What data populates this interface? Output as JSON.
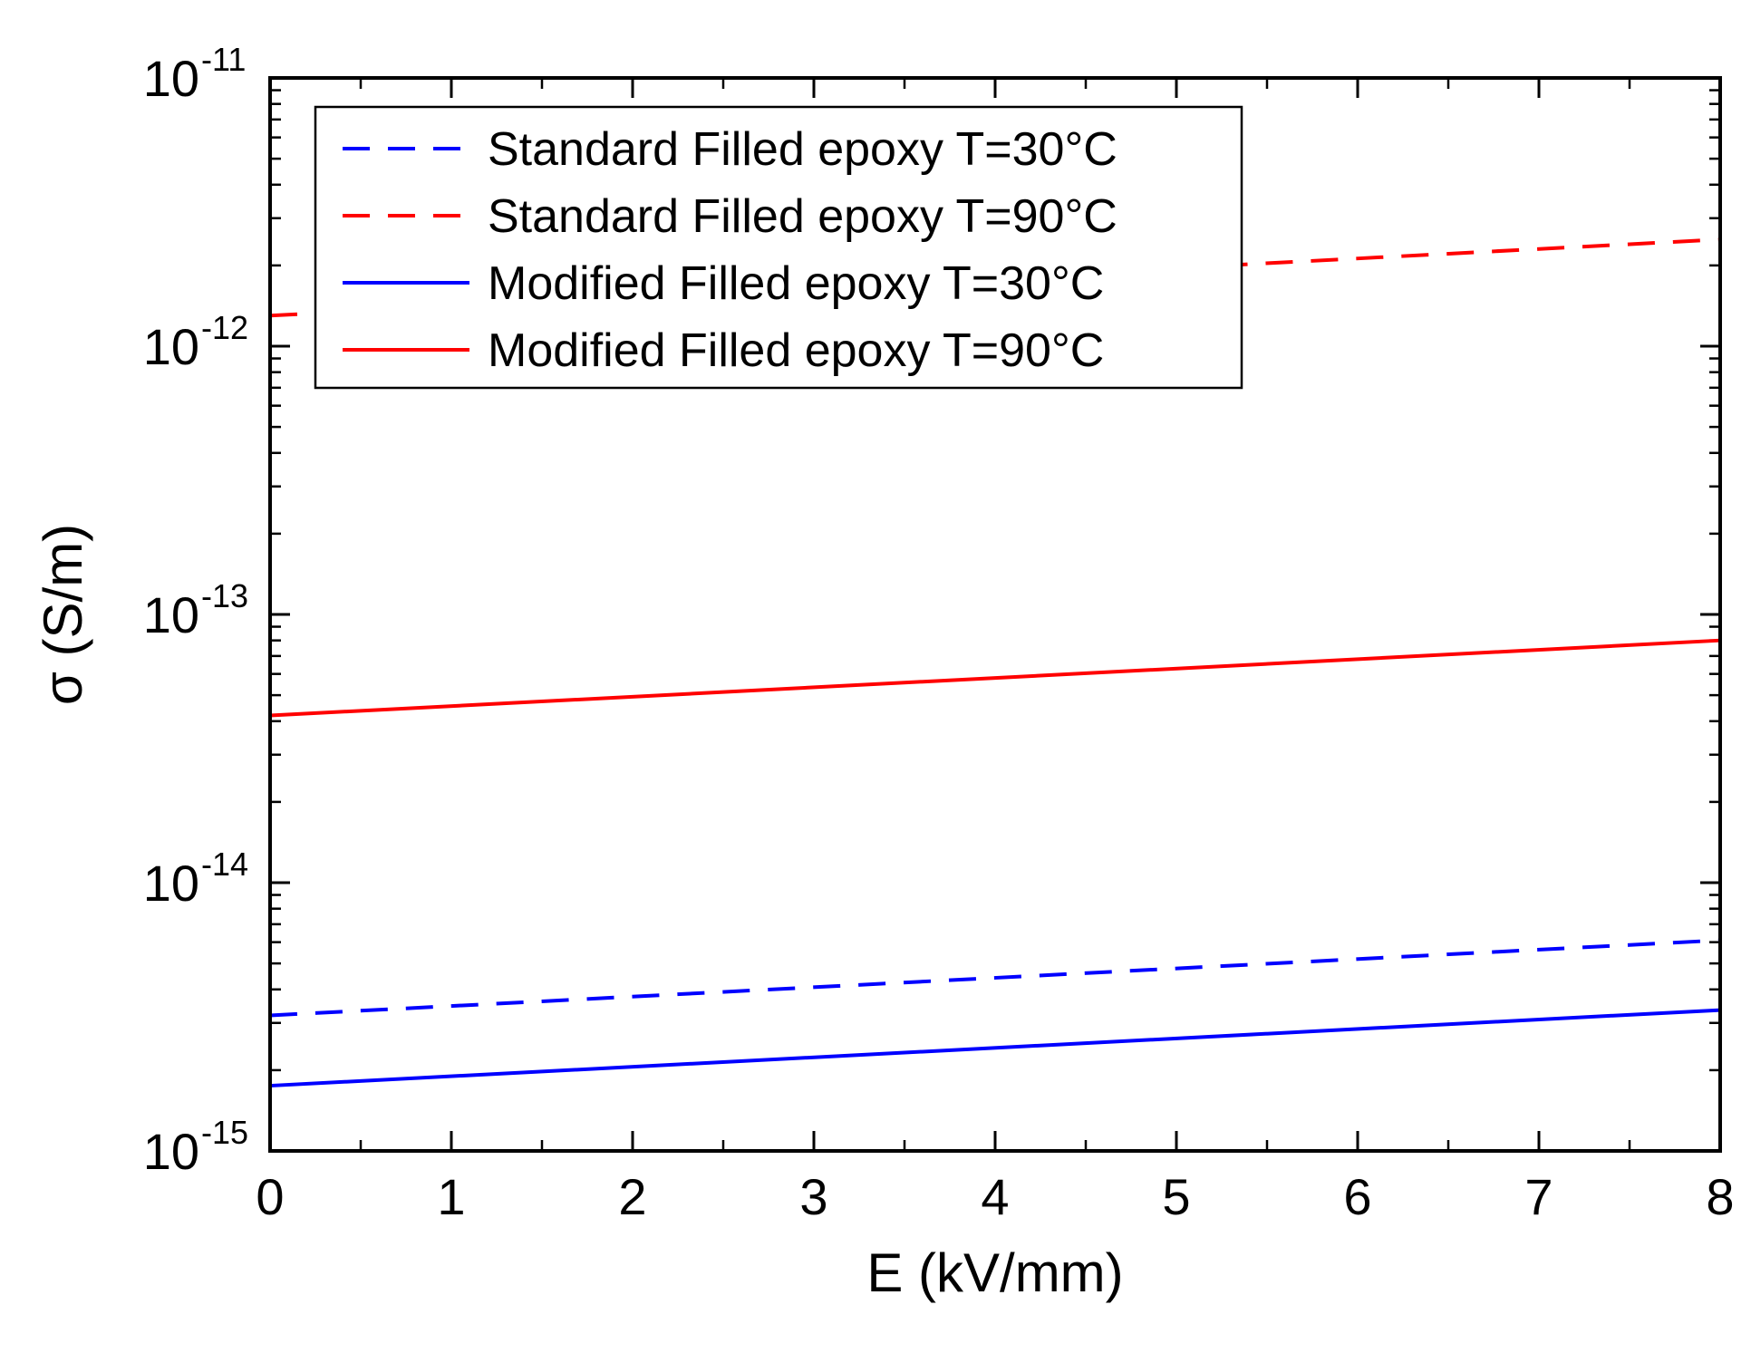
{
  "chart_data": {
    "type": "line",
    "title": "",
    "xlabel": "E (kV/mm)",
    "ylabel": "σ (S/m)",
    "xlim": [
      0,
      8
    ],
    "ylim_log10": [
      -15,
      -11
    ],
    "y_scale": "log",
    "x_ticks": [
      "0",
      "1",
      "2",
      "3",
      "4",
      "5",
      "6",
      "7",
      "8"
    ],
    "y_ticks": [
      {
        "base": "10",
        "exp": "-11"
      },
      {
        "base": "10",
        "exp": "-12"
      },
      {
        "base": "10",
        "exp": "-13"
      },
      {
        "base": "10",
        "exp": "-14"
      },
      {
        "base": "10",
        "exp": "-15"
      }
    ],
    "grid": false,
    "legend_position": "top-left",
    "series": [
      {
        "name": "Standard Filled epoxy T=30°C",
        "color": "#0000ff",
        "style": "dashed",
        "x": [
          0,
          8
        ],
        "y": [
          3.2e-15,
          6.1e-15
        ]
      },
      {
        "name": "Standard Filled epoxy T=90°C",
        "color": "#ff0000",
        "style": "dashed",
        "x": [
          0,
          8
        ],
        "y": [
          1.3e-12,
          2.5e-12
        ]
      },
      {
        "name": "Modified Filled epoxy T=30°C",
        "color": "#0000ff",
        "style": "solid",
        "x": [
          0,
          8
        ],
        "y": [
          1.75e-15,
          3.35e-15
        ]
      },
      {
        "name": "Modified Filled epoxy T=90°C",
        "color": "#ff0000",
        "style": "solid",
        "x": [
          0,
          8
        ],
        "y": [
          4.2e-14,
          8e-14
        ]
      }
    ]
  }
}
